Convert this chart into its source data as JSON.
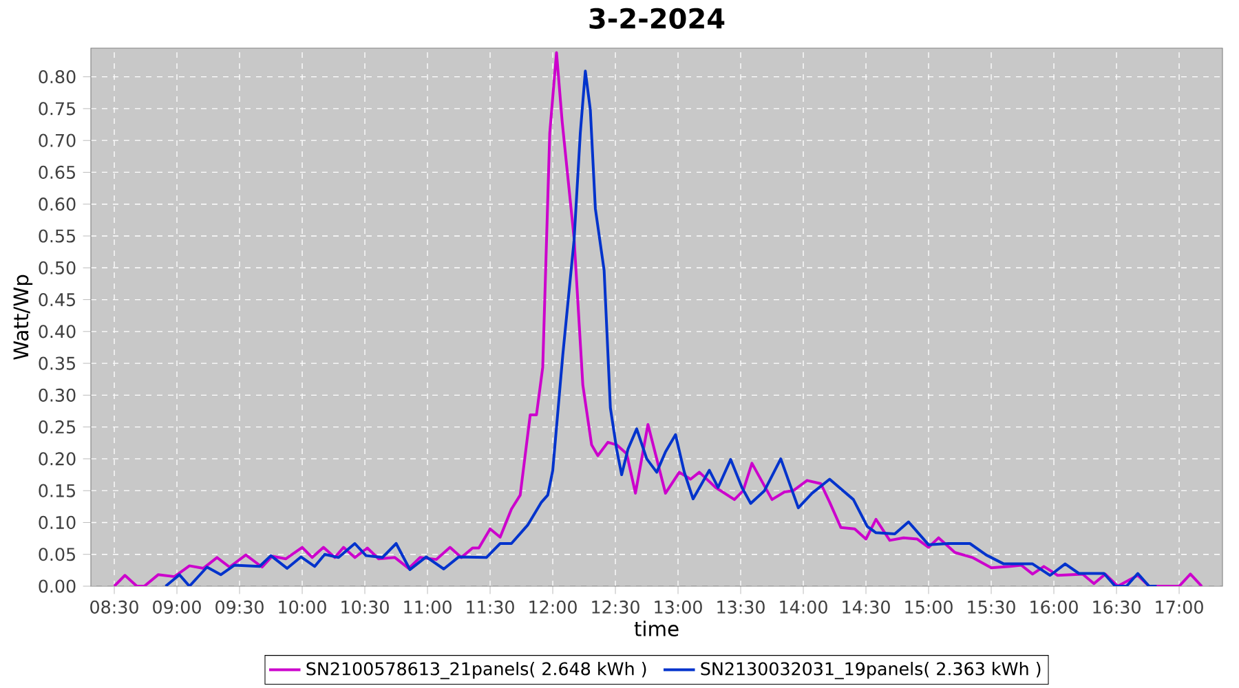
{
  "chart_data": {
    "type": "line",
    "title": "3-2-2024",
    "xlabel": "time",
    "ylabel": "Watt/Wp",
    "xlim": [
      8.313,
      17.346
    ],
    "ylim": [
      0,
      0.845
    ],
    "xticks": [
      {
        "value": 8.5,
        "label": "08:30"
      },
      {
        "value": 9,
        "label": "09:00"
      },
      {
        "value": 9.5,
        "label": "09:30"
      },
      {
        "value": 10,
        "label": "10:00"
      },
      {
        "value": 10.5,
        "label": "10:30"
      },
      {
        "value": 11,
        "label": "11:00"
      },
      {
        "value": 11.5,
        "label": "11:30"
      },
      {
        "value": 12,
        "label": "12:00"
      },
      {
        "value": 12.5,
        "label": "12:30"
      },
      {
        "value": 13,
        "label": "13:00"
      },
      {
        "value": 13.5,
        "label": "13:30"
      },
      {
        "value": 14,
        "label": "14:00"
      },
      {
        "value": 14.5,
        "label": "14:30"
      },
      {
        "value": 15,
        "label": "15:00"
      },
      {
        "value": 15.5,
        "label": "15:30"
      },
      {
        "value": 16,
        "label": "16:00"
      },
      {
        "value": 16.5,
        "label": "16:30"
      },
      {
        "value": 17,
        "label": "17:00"
      }
    ],
    "yticks": [
      {
        "value": 0,
        "label": "0.00"
      },
      {
        "value": 0.05,
        "label": "0.05"
      },
      {
        "value": 0.1,
        "label": "0.10"
      },
      {
        "value": 0.15,
        "label": "0.15"
      },
      {
        "value": 0.2,
        "label": "0.20"
      },
      {
        "value": 0.25,
        "label": "0.25"
      },
      {
        "value": 0.3,
        "label": "0.30"
      },
      {
        "value": 0.35,
        "label": "0.35"
      },
      {
        "value": 0.4,
        "label": "0.40"
      },
      {
        "value": 0.45,
        "label": "0.45"
      },
      {
        "value": 0.5,
        "label": "0.50"
      },
      {
        "value": 0.55,
        "label": "0.55"
      },
      {
        "value": 0.6,
        "label": "0.60"
      },
      {
        "value": 0.65,
        "label": "0.65"
      },
      {
        "value": 0.7,
        "label": "0.70"
      },
      {
        "value": 0.75,
        "label": "0.75"
      },
      {
        "value": 0.8,
        "label": "0.80"
      }
    ],
    "grid": true,
    "legend": "bottom",
    "line_style": "solid",
    "series": [
      {
        "name": "SN2100578613_21panels( 2.648 kWh )",
        "color": "#cc00cc",
        "x": [
          8.5,
          8.585,
          8.68,
          8.74,
          8.85,
          8.98,
          9.1,
          9.21,
          9.32,
          9.42,
          9.55,
          9.68,
          9.76,
          9.87,
          10.0,
          10.08,
          10.17,
          10.26,
          10.33,
          10.42,
          10.52,
          10.61,
          10.74,
          10.85,
          10.94,
          11.07,
          11.18,
          11.27,
          11.36,
          11.41,
          11.5,
          11.58,
          11.67,
          11.74,
          11.82,
          11.87,
          11.92,
          11.976,
          12.03,
          12.075,
          12.17,
          12.24,
          12.31,
          12.36,
          12.44,
          12.51,
          12.59,
          12.66,
          12.76,
          12.83,
          12.9,
          13.01,
          13.1,
          13.17,
          13.3,
          13.45,
          13.52,
          13.59,
          13.75,
          13.85,
          13.92,
          14.03,
          14.14,
          14.21,
          14.3,
          14.41,
          14.5,
          14.58,
          14.69,
          14.8,
          14.91,
          15.0,
          15.08,
          15.21,
          15.35,
          15.5,
          15.65,
          15.74,
          15.83,
          15.92,
          16.03,
          16.23,
          16.32,
          16.41,
          16.51,
          16.67,
          16.76,
          17.0,
          17.09,
          17.18
        ],
        "values": [
          0,
          0.017,
          0,
          0,
          0.018,
          0.015,
          0.032,
          0.028,
          0.045,
          0.03,
          0.049,
          0.03,
          0.047,
          0.043,
          0.061,
          0.045,
          0.061,
          0.045,
          0.061,
          0.045,
          0.06,
          0.043,
          0.045,
          0.028,
          0.045,
          0.042,
          0.061,
          0.045,
          0.06,
          0.06,
          0.09,
          0.077,
          0.121,
          0.143,
          0.269,
          0.269,
          0.344,
          0.712,
          0.838,
          0.73,
          0.547,
          0.316,
          0.222,
          0.205,
          0.226,
          0.222,
          0.208,
          0.146,
          0.254,
          0.2,
          0.146,
          0.179,
          0.168,
          0.179,
          0.155,
          0.136,
          0.15,
          0.193,
          0.136,
          0.148,
          0.15,
          0.166,
          0.161,
          0.132,
          0.092,
          0.09,
          0.074,
          0.105,
          0.072,
          0.076,
          0.074,
          0.061,
          0.076,
          0.053,
          0.045,
          0.029,
          0.031,
          0.033,
          0.019,
          0.031,
          0.017,
          0.019,
          0.004,
          0.019,
          0,
          0.017,
          0,
          0,
          0.019,
          0
        ]
      },
      {
        "name": "SN2130032031_19panels( 2.363 kWh )",
        "color": "#0033cc",
        "x": [
          8.91,
          9.02,
          9.1,
          9.24,
          9.35,
          9.46,
          9.66,
          9.75,
          9.88,
          9.99,
          10.1,
          10.18,
          10.29,
          10.42,
          10.51,
          10.64,
          10.75,
          10.86,
          10.99,
          11.13,
          11.25,
          11.47,
          11.58,
          11.67,
          11.8,
          11.91,
          11.96,
          12.0,
          12.08,
          12.17,
          12.22,
          12.26,
          12.3,
          12.34,
          12.41,
          12.46,
          12.51,
          12.55,
          12.6,
          12.67,
          12.75,
          12.83,
          12.9,
          12.98,
          13.05,
          13.12,
          13.25,
          13.32,
          13.42,
          13.51,
          13.58,
          13.69,
          13.82,
          13.96,
          14.07,
          14.21,
          14.4,
          14.51,
          14.58,
          14.73,
          14.84,
          15.0,
          15.16,
          15.33,
          15.46,
          15.6,
          15.83,
          15.97,
          16.09,
          16.2,
          16.4,
          16.49,
          16.58,
          16.67,
          16.76,
          16.82
        ],
        "values": [
          0,
          0.018,
          0,
          0.03,
          0.018,
          0.033,
          0.031,
          0.048,
          0.028,
          0.046,
          0.031,
          0.05,
          0.045,
          0.067,
          0.048,
          0.045,
          0.067,
          0.026,
          0.046,
          0.027,
          0.046,
          0.045,
          0.067,
          0.067,
          0.096,
          0.132,
          0.143,
          0.182,
          0.363,
          0.543,
          0.712,
          0.809,
          0.748,
          0.593,
          0.496,
          0.28,
          0.215,
          0.175,
          0.215,
          0.247,
          0.2,
          0.179,
          0.211,
          0.238,
          0.179,
          0.137,
          0.182,
          0.155,
          0.199,
          0.155,
          0.13,
          0.15,
          0.2,
          0.123,
          0.146,
          0.168,
          0.136,
          0.094,
          0.084,
          0.082,
          0.101,
          0.065,
          0.067,
          0.067,
          0.049,
          0.035,
          0.035,
          0.017,
          0.035,
          0.02,
          0.02,
          0,
          0,
          0.02,
          0,
          0
        ]
      }
    ]
  }
}
